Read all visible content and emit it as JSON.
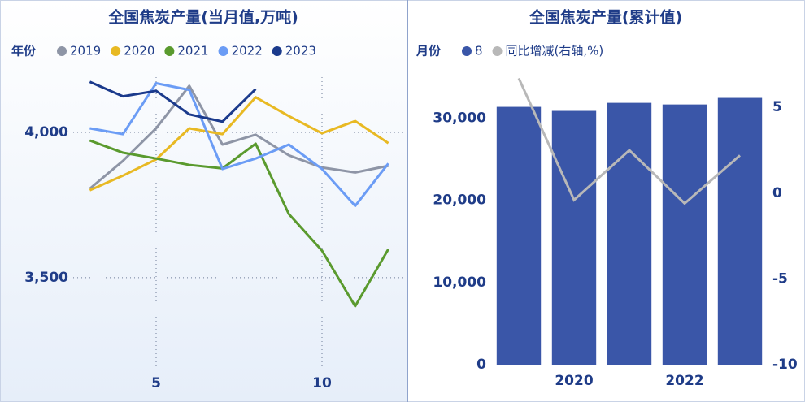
{
  "chart_data": [
    {
      "type": "line",
      "title": "全国焦炭产量(当月值,万吨)",
      "legend_title": "年份",
      "x": [
        3,
        4,
        5,
        6,
        7,
        8,
        9,
        10,
        11,
        12
      ],
      "series": [
        {
          "name": "2019",
          "color": "#8e95a6",
          "values": [
            3806,
            3902,
            4014,
            4160,
            3958,
            3992,
            3921,
            3879,
            3862,
            3885
          ]
        },
        {
          "name": "2020",
          "color": "#e8b923",
          "values": [
            3801,
            3851,
            3907,
            4014,
            3994,
            4121,
            4056,
            3997,
            4039,
            3963
          ]
        },
        {
          "name": "2021",
          "color": "#5a9a2e",
          "values": [
            3972,
            3930,
            3910,
            3888,
            3876,
            3961,
            3719,
            3593,
            3402,
            3598
          ]
        },
        {
          "name": "2022",
          "color": "#6b9cf5",
          "values": [
            4014,
            3994,
            4169,
            4146,
            3874,
            3910,
            3958,
            3874,
            3747,
            3893
          ]
        },
        {
          "name": "2023",
          "color": "#1b3a8c",
          "values": [
            4174,
            4124,
            4143,
            4062,
            4037,
            4149,
            null,
            null,
            null,
            null
          ]
        }
      ],
      "xlim": [
        2.5,
        12.5
      ],
      "xticks": [
        5,
        10
      ],
      "ylim": [
        3170,
        4190
      ],
      "yticks": [
        {
          "value": 3500,
          "label": "3,500"
        },
        {
          "value": 4000,
          "label": "4,000"
        }
      ],
      "grid": true
    },
    {
      "type": "bar",
      "title": "全国焦炭产量(累计值)",
      "legend_title": "月份",
      "categories": [
        null,
        "2020",
        null,
        "2022",
        null
      ],
      "series": [
        {
          "name": "8",
          "type": "bar",
          "color": "#3a56a8",
          "values": [
            31390,
            30900,
            31880,
            31680,
            32480
          ]
        },
        {
          "name": "同比增减(右轴,%)",
          "type": "line",
          "axis": "y2",
          "color": "#b8b8b8",
          "values": [
            6.7,
            -0.4,
            2.5,
            -0.6,
            2.2
          ]
        }
      ],
      "ylim": [
        0,
        35500
      ],
      "yticks": [
        0,
        {
          "value": 10000,
          "label": "10,000"
        },
        {
          "value": 20000,
          "label": "20,000"
        },
        {
          "value": 30000,
          "label": "30,000"
        }
      ],
      "y2lim": [
        -10,
        7
      ],
      "y2ticks": [
        -10,
        -5,
        0,
        5
      ],
      "grid": false
    }
  ]
}
